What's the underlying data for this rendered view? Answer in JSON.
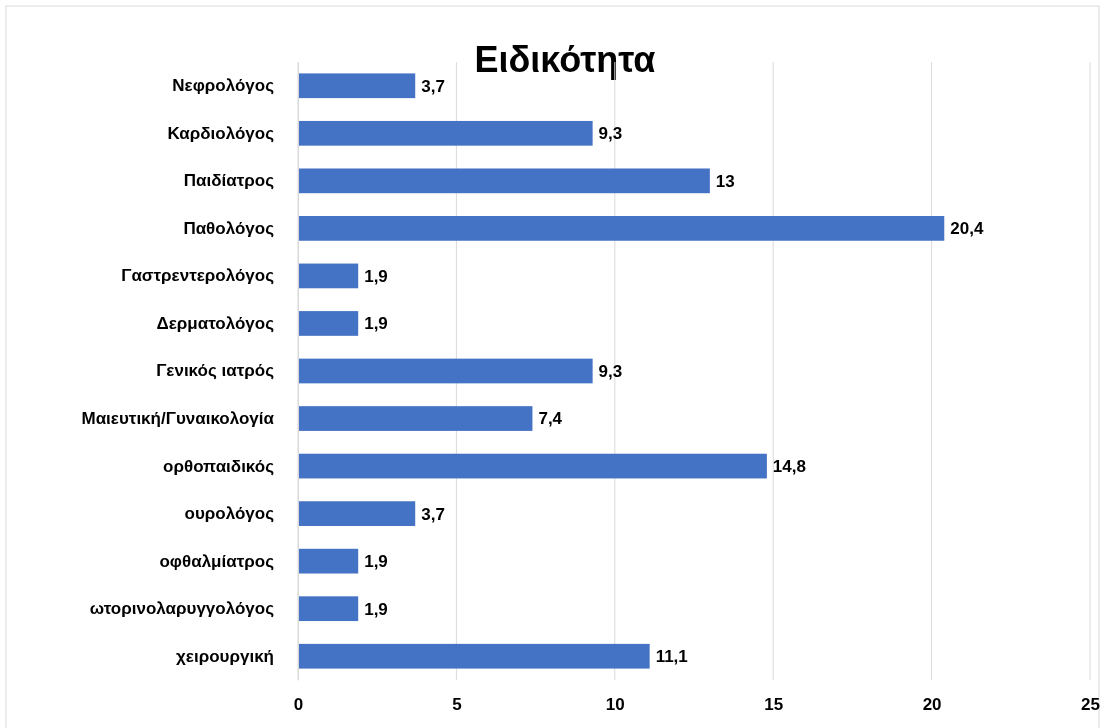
{
  "chart_data": {
    "type": "bar",
    "orientation": "horizontal",
    "title": "Ειδικότητα",
    "categories": [
      "Νεφρολόγος",
      "Καρδιολόγος",
      "Παιδίατρος",
      "Παθολόγος",
      "Γαστρεντερολόγος",
      "Δερματολόγος",
      "Γενικός ιατρός",
      "Μαιευτική/Γυναικολογία",
      "ορθοπαιδικός",
      "ουρολόγος",
      "οφθαλμίατρος",
      "ωτορινολαρυγγολόγος",
      "χειρουργική"
    ],
    "values": [
      3.7,
      9.3,
      13,
      20.4,
      1.9,
      1.9,
      9.3,
      7.4,
      14.8,
      3.7,
      1.9,
      1.9,
      11.1
    ],
    "value_labels": [
      "3,7",
      "9,3",
      "13",
      "20,4",
      "1,9",
      "1,9",
      "9,3",
      "7,4",
      "14,8",
      "3,7",
      "1,9",
      "1,9",
      "11,1"
    ],
    "color": "#4472c4",
    "xlim": [
      0,
      25
    ],
    "xticks": [
      0,
      5,
      10,
      15,
      20,
      25
    ],
    "grid": "x"
  }
}
